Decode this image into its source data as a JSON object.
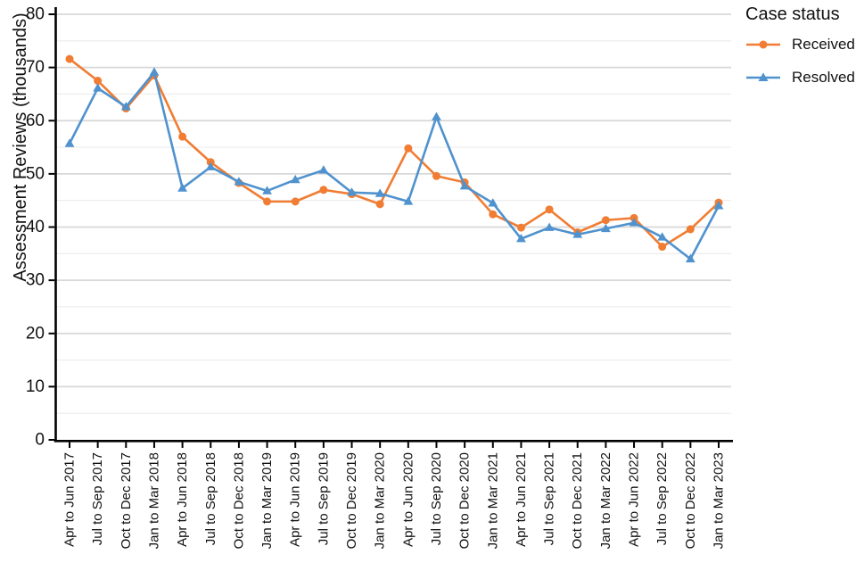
{
  "chart_data": {
    "type": "line",
    "title": "",
    "xlabel": "",
    "ylabel": "Assessment Reviews (thousands)",
    "ylim": [
      0,
      80
    ],
    "yticks": [
      0,
      10,
      20,
      30,
      40,
      50,
      60,
      70,
      80
    ],
    "grid": {
      "show": true,
      "minor_color": "#ececec",
      "major_color": "#d8d8d8"
    },
    "axis_color": "#000000",
    "legend": {
      "title": "Case status",
      "position": "top-right"
    },
    "categories": [
      "Apr to Jun 2017",
      "Jul to Sep 2017",
      "Oct to Dec 2017",
      "Jan to Mar 2018",
      "Apr to Jun 2018",
      "Jul to Sep 2018",
      "Oct to Dec 2018",
      "Jan to Mar 2019",
      "Apr to Jun 2019",
      "Jul to Sep 2019",
      "Oct to Dec 2019",
      "Jan to Mar 2020",
      "Apr to Jun 2020",
      "Jul to Sep 2020",
      "Oct to Dec 2020",
      "Jan to Mar 2021",
      "Apr to Jun 2021",
      "Jul to Sep 2021",
      "Oct to Dec 2021",
      "Jan to Mar 2022",
      "Apr to Jun 2022",
      "Jul to Sep 2022",
      "Oct to Dec 2022",
      "Jan to Mar 2023"
    ],
    "series": [
      {
        "name": "Received",
        "marker": "circle",
        "color": "#f07d33",
        "values": [
          71.6,
          67.5,
          62.3,
          68.5,
          57.0,
          52.2,
          48.3,
          44.8,
          44.8,
          47.0,
          46.2,
          44.3,
          54.8,
          49.6,
          48.4,
          42.4,
          39.9,
          43.3,
          39.0,
          41.3,
          41.7,
          36.3,
          39.6,
          44.6
        ]
      },
      {
        "name": "Resolved",
        "marker": "triangle-up",
        "color": "#4f92ce",
        "values": [
          55.7,
          66.1,
          62.6,
          69.1,
          47.3,
          51.3,
          48.5,
          46.8,
          48.9,
          50.7,
          46.5,
          46.3,
          44.8,
          60.7,
          47.7,
          44.5,
          37.8,
          39.9,
          38.6,
          39.7,
          40.8,
          38.1,
          34.0,
          44.0
        ]
      }
    ]
  }
}
